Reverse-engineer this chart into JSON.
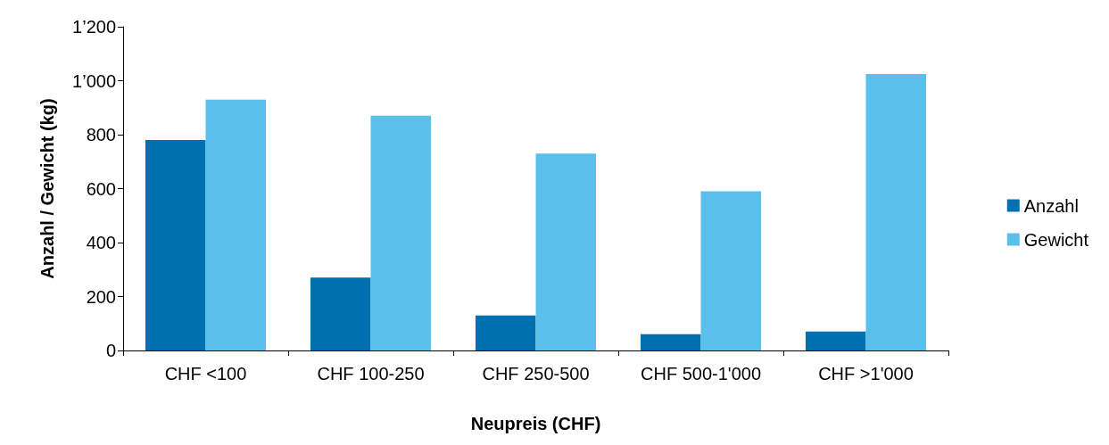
{
  "chart_data": {
    "type": "bar",
    "xlabel": "Neupreis (CHF)",
    "ylabel": "Anzahl / Gewicht (kg)",
    "categories": [
      "CHF <100",
      "CHF 100-250",
      "CHF 250-500",
      "CHF 500-1'000",
      "CHF >1'000"
    ],
    "series": [
      {
        "name": "Anzahl",
        "color": "#0070b0",
        "values": [
          780,
          270,
          130,
          60,
          70
        ]
      },
      {
        "name": "Gewicht",
        "color": "#5bbfeb",
        "values": [
          930,
          870,
          730,
          590,
          1025
        ]
      }
    ],
    "ylim": [
      0,
      1200
    ],
    "yticks": [
      0,
      200,
      400,
      600,
      800,
      {
        "value": 1000,
        "label": "1’000"
      },
      {
        "value": 1200,
        "label": "1’200"
      }
    ],
    "grid": false,
    "legend": "right"
  }
}
